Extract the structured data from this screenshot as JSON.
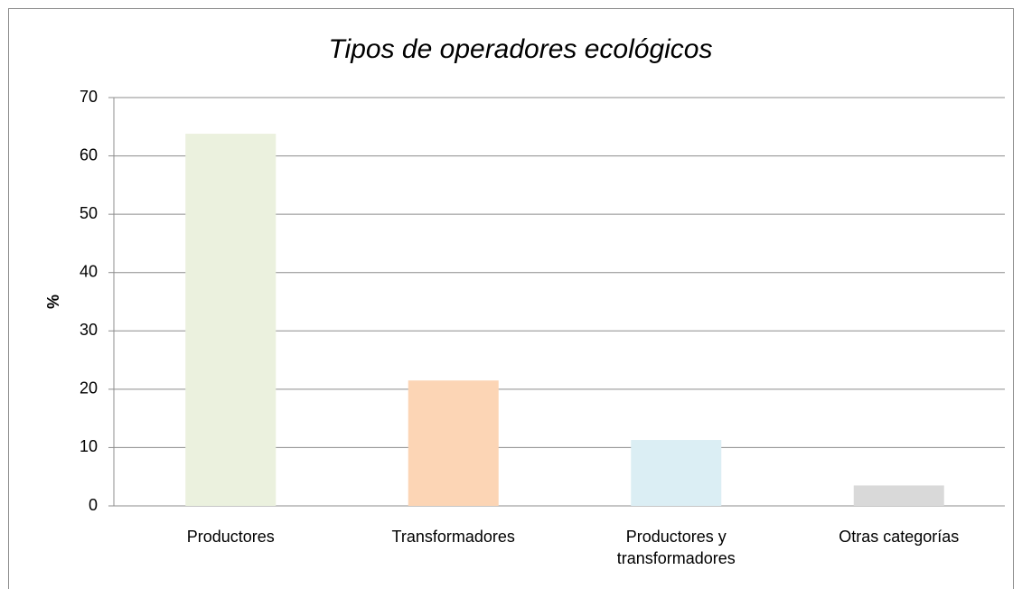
{
  "chart_data": {
    "type": "bar",
    "title": "Tipos de operadores ecológicos",
    "y_label": "%",
    "categories": [
      "Productores",
      "Transformadores",
      "Productores y transformadores",
      "Otras categorías"
    ],
    "values": [
      63.8,
      21.5,
      11.3,
      3.5
    ],
    "colors": [
      "#ebf1de",
      "#fcd5b5",
      "#dbeef4",
      "#d9d9d9"
    ],
    "ylim": [
      0,
      70
    ],
    "yticks": [
      0,
      10,
      20,
      30,
      40,
      50,
      60,
      70
    ],
    "grid": true
  }
}
